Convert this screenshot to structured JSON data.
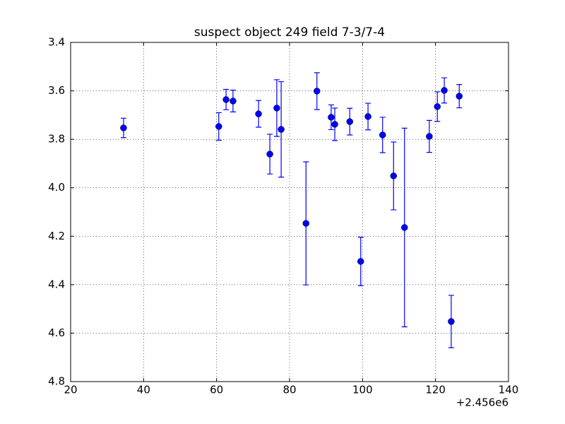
{
  "chart_data": {
    "type": "errorbar",
    "title": "suspect object 249 field 7-3/7-4",
    "x": [
      34.5,
      60.6,
      62.6,
      64.5,
      71.5,
      74.6,
      76.5,
      77.7,
      84.5,
      87.5,
      91.4,
      92.4,
      96.5,
      99.5,
      101.5,
      105.5,
      108.5,
      111.5,
      118.3,
      120.5,
      122.4,
      124.3,
      126.5
    ],
    "values": [
      3.753,
      3.747,
      3.636,
      3.642,
      3.695,
      3.861,
      3.671,
      3.759,
      4.147,
      3.601,
      3.709,
      3.738,
      3.727,
      4.304,
      3.706,
      3.782,
      3.951,
      4.164,
      3.788,
      3.665,
      3.598,
      4.552,
      3.622
    ],
    "errors": [
      0.04,
      0.057,
      0.042,
      0.045,
      0.055,
      0.082,
      0.117,
      0.197,
      0.254,
      0.076,
      0.051,
      0.067,
      0.055,
      0.1,
      0.055,
      0.073,
      0.14,
      0.41,
      0.066,
      0.061,
      0.052,
      0.108,
      0.048
    ],
    "color": "#0000ff",
    "xlim": [
      20,
      140
    ],
    "xticks": [
      20,
      40,
      60,
      80,
      100,
      120,
      140
    ],
    "x_offset_label": "+2.456e6",
    "ylim": [
      4.8,
      3.4
    ],
    "yticks": [
      3.4,
      3.6,
      3.8,
      {
        "value": 4,
        "label": "4.0"
      },
      4.2,
      4.4,
      4.6,
      4.8
    ],
    "grid": true
  }
}
